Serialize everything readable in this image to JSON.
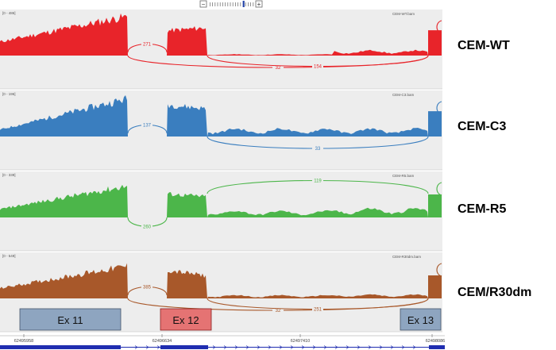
{
  "zoom_control": {
    "minus": "−",
    "plus": "+"
  },
  "tracks": [
    {
      "name": "CEM-WT",
      "range": "[0 - 486]",
      "file": "CEM-WT.bam",
      "color": "#e8242a",
      "junctions": {
        "upper": "271",
        "lower_left": "32",
        "lower_right": "154"
      }
    },
    {
      "name": "CEM-C3",
      "range": "[0 - 196]",
      "file": "CEM-C3.bam",
      "color": "#3a7ebf",
      "junctions": {
        "upper": "137",
        "lower": "33"
      }
    },
    {
      "name": "CEM-R5",
      "range": "[0 - 339]",
      "file": "CEM-R5.bam",
      "color": "#4cb64a",
      "junctions": {
        "upper": "119",
        "lower": "260"
      }
    },
    {
      "name": "CEM/R30dm",
      "range": "[0 - 549]",
      "file": "CEM-R30dm.bam",
      "color": "#a8582a",
      "junctions": {
        "upper": "385",
        "lower_left": "32",
        "lower_right": "251"
      }
    }
  ],
  "exons": [
    {
      "label": "Ex 11",
      "fill": "#8ea5c0",
      "stroke": "#44546a"
    },
    {
      "label": "Ex 12",
      "fill": "#e57373",
      "stroke": "#8a1f1f"
    },
    {
      "label": "Ex 13",
      "fill": "#8ea5c0",
      "stroke": "#44546a"
    }
  ],
  "ruler": {
    "ticks": [
      "62495958",
      "62496634",
      "62497410",
      "62498086"
    ]
  },
  "colors": {
    "track_bg": "#ededed",
    "gene": "#1f2db0"
  }
}
